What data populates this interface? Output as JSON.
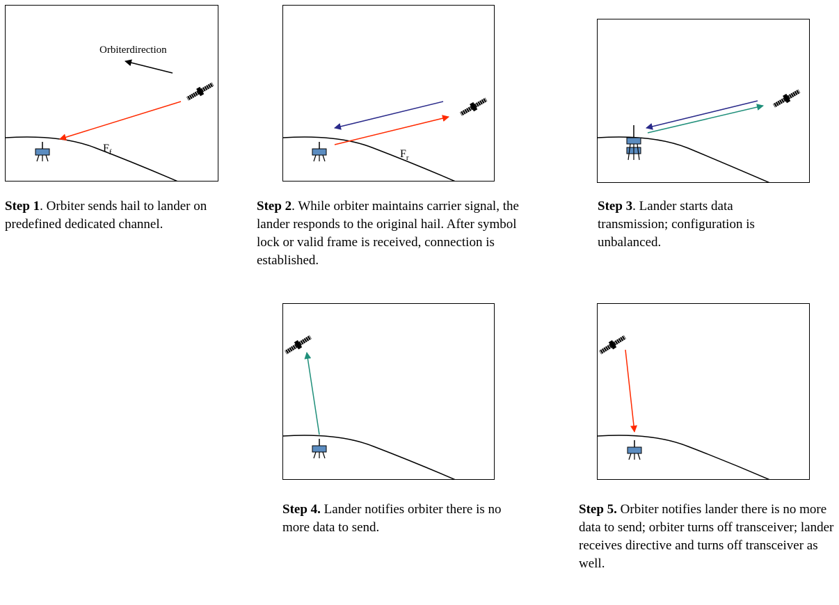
{
  "colors": {
    "orbiter_signal": "#ff2a00",
    "lander_signal": "#1f8f7a",
    "carrier_signal": "#2a2a8a",
    "lander_body": "#5b8cc0"
  },
  "icons": [
    "satellite-icon",
    "lander-icon",
    "direction-arrow-icon"
  ],
  "step1": {
    "direction_label": "Orbiterdirection",
    "freq_label_main": "F",
    "freq_label_sub": "f",
    "caption_bold": "Step 1",
    "caption_text": ". Orbiter sends hail to lander on predefined dedicated channel."
  },
  "step2": {
    "freq_label_main": "F",
    "freq_label_sub": "r",
    "caption_bold": "Step 2",
    "caption_text": ". While orbiter maintains carrier signal, the lander responds to the original hail. After symbol lock or valid frame is received, connection is established."
  },
  "step3": {
    "caption_bold": "Step 3",
    "caption_text": ". Lander starts data transmission; configuration is unbalanced."
  },
  "step4": {
    "caption_bold": "Step 4.",
    "caption_text": "  Lander notifies orbiter there is no more data to send."
  },
  "step5": {
    "caption_bold": "Step 5.",
    "caption_text": "  Orbiter notifies lander there is no more data to send; orbiter turns off transceiver; lander receives directive and turns off transceiver as well."
  }
}
